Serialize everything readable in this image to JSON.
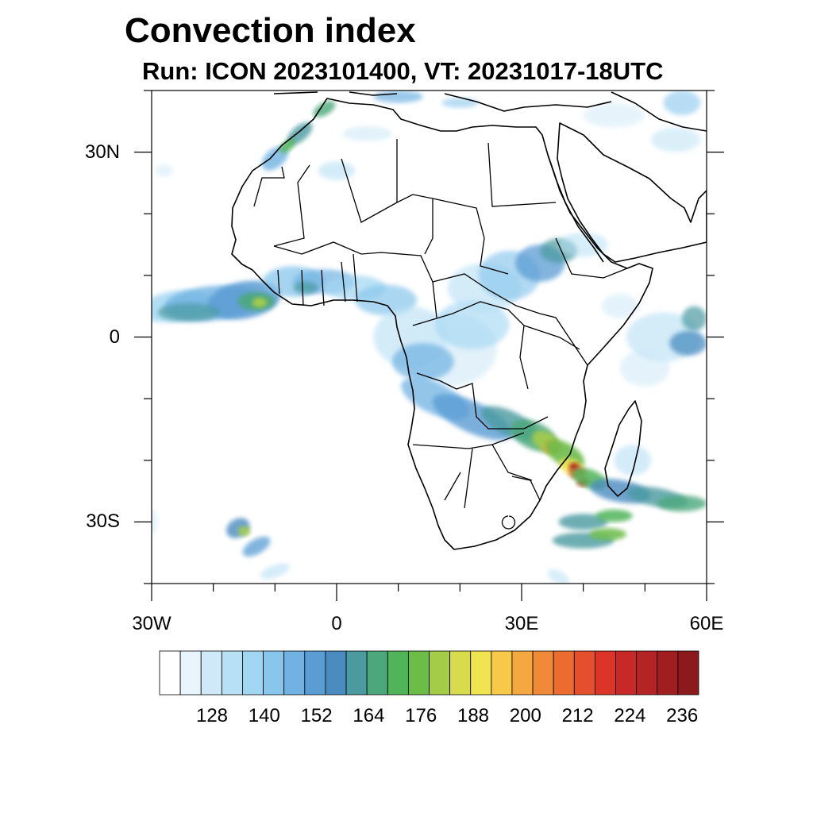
{
  "title": "Convection index",
  "subtitle": "Run: ICON 2023101400,  VT: 20231017-18UTC",
  "axes": {
    "x_ticks": [
      {
        "lon": -30,
        "label": "30W"
      },
      {
        "lon": 0,
        "label": "0"
      },
      {
        "lon": 30,
        "label": "30E"
      },
      {
        "lon": 60,
        "label": "60E"
      }
    ],
    "y_ticks": [
      {
        "lat": 30,
        "label": "30N"
      },
      {
        "lat": 0,
        "label": "0"
      },
      {
        "lat": -30,
        "label": "30S"
      }
    ],
    "lon_range": [
      -30,
      60
    ],
    "lat_range": [
      -40,
      40
    ]
  },
  "colorbar": {
    "colors": [
      "#ffffff",
      "#e8f5fc",
      "#cfe9f8",
      "#b8e0f5",
      "#a0d6f2",
      "#88c6ec",
      "#70b2e2",
      "#5a9cd4",
      "#4a8cc0",
      "#4a9aa0",
      "#4ca87c",
      "#50b458",
      "#6cbc48",
      "#a4cc48",
      "#d8dc4c",
      "#f0e450",
      "#f8c848",
      "#f4a840",
      "#f08a38",
      "#ec6c30",
      "#e4502c",
      "#dc3428",
      "#c82828",
      "#b42424",
      "#a01e20",
      "#8c1a1c"
    ],
    "labels": [
      "128",
      "140",
      "152",
      "164",
      "176",
      "188",
      "200",
      "212",
      "224",
      "236"
    ]
  },
  "regions": {
    "atlantic_itcz": "moderate",
    "west_africa": "moderate",
    "congo_basin": "weak-moderate",
    "mozambique_channel": "strong",
    "south_atlantic_cell": "moderate",
    "indian_ocean": "weak-moderate"
  }
}
